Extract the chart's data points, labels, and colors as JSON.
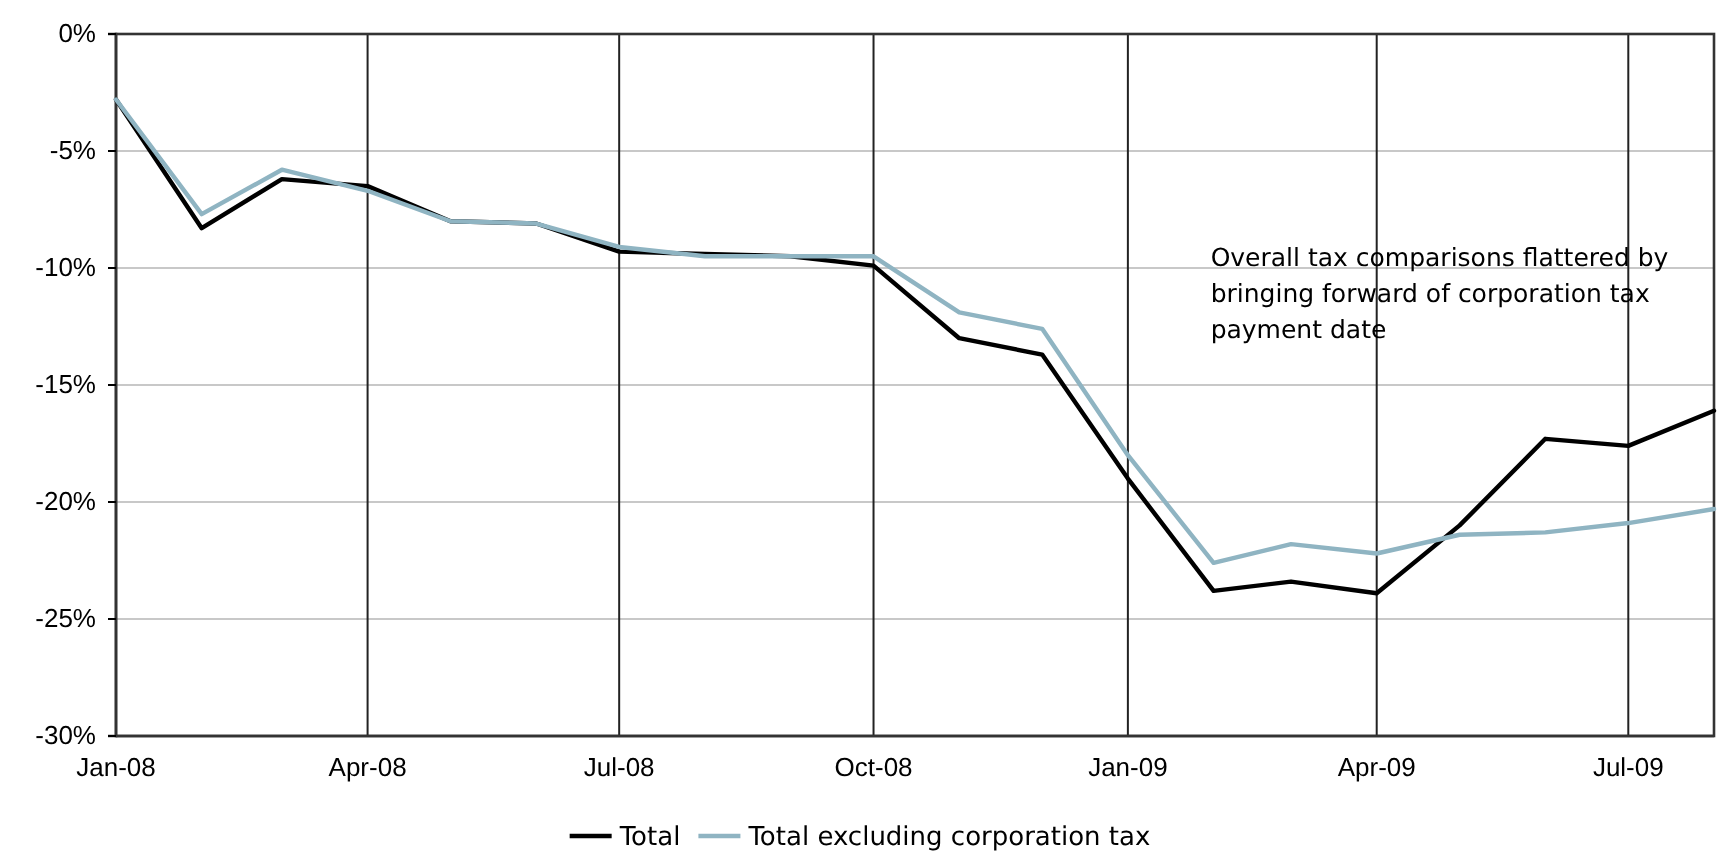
{
  "chart_data": {
    "type": "line",
    "x": [
      "2008-01",
      "2008-02",
      "2008-03",
      "2008-04",
      "2008-05",
      "2008-06",
      "2008-07",
      "2008-08",
      "2008-09",
      "2008-10",
      "2008-11",
      "2008-12",
      "2009-01",
      "2009-02",
      "2009-03",
      "2009-04",
      "2009-05",
      "2009-06",
      "2009-07",
      "2009-08"
    ],
    "series": [
      {
        "name": "Total",
        "color": "#000000",
        "values": [
          -2.8,
          -8.3,
          -6.2,
          -6.5,
          -8.0,
          -8.1,
          -9.3,
          -9.4,
          -9.5,
          -9.9,
          -13.0,
          -13.7,
          -19.0,
          -23.8,
          -23.4,
          -23.9,
          -21.0,
          -17.3,
          -17.6,
          -16.1
        ]
      },
      {
        "name": "Total excluding corporation tax",
        "color": "#8fb4c2",
        "values": [
          -2.8,
          -7.7,
          -5.8,
          -6.7,
          -8.0,
          -8.1,
          -9.1,
          -9.5,
          -9.5,
          -9.5,
          -11.9,
          -12.6,
          -18.0,
          -22.6,
          -21.8,
          -22.2,
          -21.4,
          -21.3,
          -20.9,
          -20.3
        ]
      }
    ],
    "xlim": [
      "2008-01",
      "2009-08"
    ],
    "xticks": [
      {
        "value": "2008-01",
        "label": "Jan-08"
      },
      {
        "value": "2008-04",
        "label": "Apr-08"
      },
      {
        "value": "2008-07",
        "label": "Jul-08"
      },
      {
        "value": "2008-10",
        "label": "Oct-08"
      },
      {
        "value": "2009-01",
        "label": "Jan-09"
      },
      {
        "value": "2009-04",
        "label": "Apr-09"
      },
      {
        "value": "2009-07",
        "label": "Jul-09"
      }
    ],
    "ylim": [
      -30,
      0
    ],
    "yticks": [
      {
        "value": -30,
        "label": "-30%"
      },
      {
        "value": -25,
        "label": "-25%"
      },
      {
        "value": -20,
        "label": "-20%"
      },
      {
        "value": -15,
        "label": "-15%"
      },
      {
        "value": -10,
        "label": "-10%"
      },
      {
        "value": -5,
        "label": "-5%"
      },
      {
        "value": 0,
        "label": "0%"
      }
    ],
    "grid": true,
    "legend": "bottom",
    "annotations": [
      "Overall tax comparisons flattered by bringing forward of corporation tax payment date"
    ]
  }
}
